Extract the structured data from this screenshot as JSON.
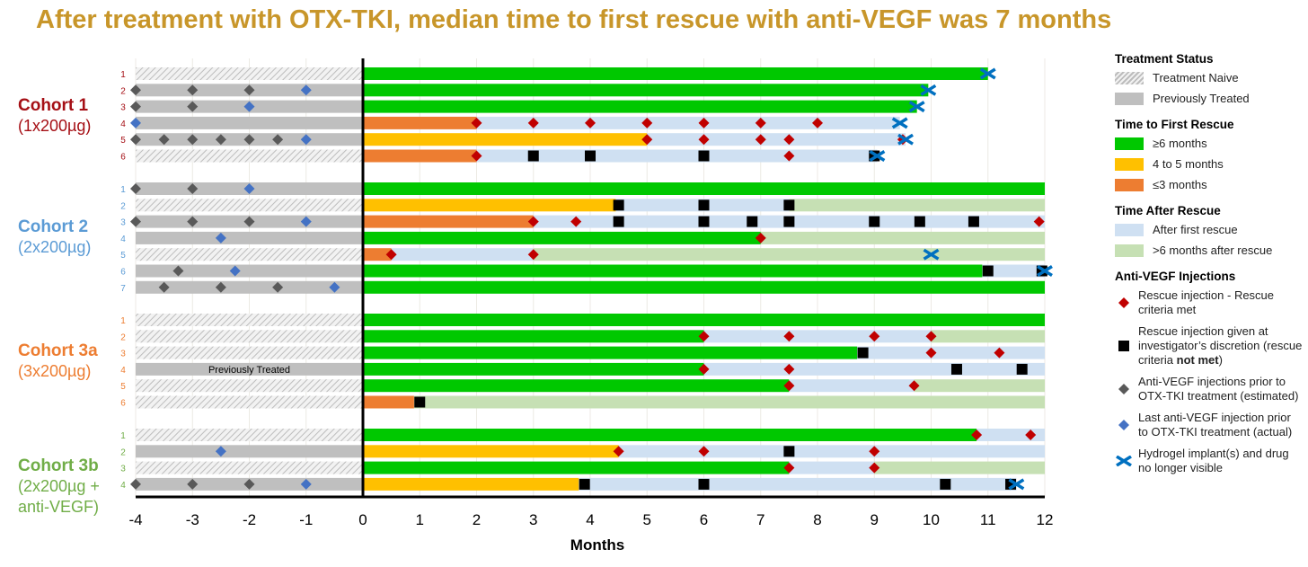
{
  "title": "After treatment with OTX-TKI, median time to first rescue with anti-VEGF was 7 months",
  "colors": {
    "title": "#C8962A",
    "green": "#00C800",
    "yellow": "#FFC000",
    "orange": "#ED7D31",
    "after": "#CFE0F2",
    "after6": "#C6E0B4",
    "prev": "#BFBFBF",
    "rescue": "#C00000",
    "discretion": "#000000",
    "prior": "#595959",
    "last": "#4472C4",
    "hydrogel": "#0070C0"
  },
  "chart_data": {
    "type": "swimmer",
    "title": "After treatment with OTX-TKI, median time to first rescue with anti-VEGF was 7 months",
    "xlabel": "Months",
    "xlim": [
      -4,
      12
    ],
    "xticks": [
      "-4",
      "-3",
      "-2",
      "-1",
      "0",
      "1",
      "2",
      "3",
      "4",
      "5",
      "6",
      "7",
      "8",
      "9",
      "10",
      "11",
      "12"
    ],
    "cohorts": [
      {
        "name": "Cohort 1",
        "dose": "(1x200µg)",
        "color": "#A50F15",
        "rows": [
          {
            "n": "1",
            "pre": "naive",
            "segs": [
              [
                "green",
                0,
                11
              ]
            ],
            "marks": [
              [
                "x",
                11
              ]
            ]
          },
          {
            "n": "2",
            "pre": "prev",
            "segs": [
              [
                "green",
                0,
                9.95
              ]
            ],
            "marks": [
              [
                "prior",
                -4
              ],
              [
                "prior",
                -3
              ],
              [
                "prior",
                -2
              ],
              [
                "last",
                -1
              ],
              [
                "x",
                9.95
              ]
            ]
          },
          {
            "n": "3",
            "pre": "prev",
            "segs": [
              [
                "green",
                0,
                9.75
              ]
            ],
            "marks": [
              [
                "prior",
                -4
              ],
              [
                "prior",
                -3
              ],
              [
                "last",
                -2
              ],
              [
                "x",
                9.75
              ]
            ]
          },
          {
            "n": "4",
            "pre": "prev",
            "segs": [
              [
                "orange",
                0,
                2
              ],
              [
                "after",
                2,
                9.45
              ]
            ],
            "marks": [
              [
                "last",
                -4
              ],
              [
                "rescue",
                2
              ],
              [
                "rescue",
                3
              ],
              [
                "rescue",
                4
              ],
              [
                "rescue",
                5
              ],
              [
                "rescue",
                6
              ],
              [
                "rescue",
                7
              ],
              [
                "rescue",
                8
              ],
              [
                "x",
                9.45
              ]
            ]
          },
          {
            "n": "5",
            "pre": "prev",
            "segs": [
              [
                "yellow",
                0,
                5
              ],
              [
                "after",
                5,
                9.55
              ]
            ],
            "marks": [
              [
                "prior",
                -4
              ],
              [
                "prior",
                -3.5
              ],
              [
                "prior",
                -3
              ],
              [
                "prior",
                -2.5
              ],
              [
                "prior",
                -2
              ],
              [
                "prior",
                -1.5
              ],
              [
                "last",
                -1
              ],
              [
                "rescue",
                5
              ],
              [
                "rescue",
                6
              ],
              [
                "rescue",
                7
              ],
              [
                "rescue",
                7.5
              ],
              [
                "rescue",
                9.5
              ],
              [
                "x",
                9.55
              ]
            ]
          },
          {
            "n": "6",
            "pre": "naive",
            "segs": [
              [
                "orange",
                0,
                2
              ],
              [
                "after",
                2,
                9.05
              ]
            ],
            "marks": [
              [
                "rescue",
                2
              ],
              [
                "discretion",
                3
              ],
              [
                "discretion",
                4
              ],
              [
                "discretion",
                6
              ],
              [
                "rescue",
                7.5
              ],
              [
                "discretion",
                9
              ],
              [
                "x",
                9.05
              ]
            ]
          }
        ]
      },
      {
        "name": "Cohort 2",
        "dose": "(2x200µg)",
        "color": "#5B9BD5",
        "rows": [
          {
            "n": "1",
            "pre": "prev",
            "segs": [
              [
                "green",
                0,
                12
              ]
            ],
            "marks": [
              [
                "prior",
                -4
              ],
              [
                "prior",
                -3
              ],
              [
                "last",
                -2
              ]
            ]
          },
          {
            "n": "2",
            "pre": "naive",
            "segs": [
              [
                "yellow",
                0,
                4.45
              ],
              [
                "after",
                4.45,
                7.5
              ],
              [
                "after6",
                7.5,
                12
              ]
            ],
            "marks": [
              [
                "discretion",
                4.5
              ],
              [
                "discretion",
                6
              ],
              [
                "discretion",
                7.5
              ]
            ]
          },
          {
            "n": "3",
            "pre": "prev",
            "segs": [
              [
                "orange",
                0,
                3
              ],
              [
                "after",
                3,
                12
              ]
            ],
            "marks": [
              [
                "prior",
                -4
              ],
              [
                "prior",
                -3
              ],
              [
                "prior",
                -2
              ],
              [
                "last",
                -1
              ],
              [
                "rescue",
                3
              ],
              [
                "rescue",
                3.75
              ],
              [
                "discretion",
                4.5
              ],
              [
                "discretion",
                6
              ],
              [
                "discretion",
                6.85
              ],
              [
                "discretion",
                7.5
              ],
              [
                "discretion",
                9
              ],
              [
                "discretion",
                9.8
              ],
              [
                "discretion",
                10.75
              ],
              [
                "rescue",
                11.9
              ]
            ]
          },
          {
            "n": "4",
            "pre": "prev",
            "segs": [
              [
                "green",
                0,
                7
              ],
              [
                "after6",
                7,
                12
              ]
            ],
            "marks": [
              [
                "last",
                -2.5
              ],
              [
                "rescue",
                7
              ]
            ]
          },
          {
            "n": "5",
            "pre": "naive",
            "segs": [
              [
                "orange",
                0,
                0.5
              ],
              [
                "after",
                0.5,
                3
              ],
              [
                "after6",
                3,
                12
              ]
            ],
            "marks": [
              [
                "rescue",
                0.5
              ],
              [
                "rescue",
                3
              ],
              [
                "x",
                10
              ]
            ]
          },
          {
            "n": "6",
            "pre": "prev",
            "segs": [
              [
                "green",
                0,
                10.9
              ],
              [
                "after",
                10.9,
                12
              ]
            ],
            "marks": [
              [
                "prior",
                -3.25
              ],
              [
                "last",
                -2.25
              ],
              [
                "discretion",
                11
              ],
              [
                "discretion",
                11.95
              ],
              [
                "x",
                12
              ]
            ]
          },
          {
            "n": "7",
            "pre": "prev",
            "segs": [
              [
                "green",
                0,
                12
              ]
            ],
            "marks": [
              [
                "prior",
                -3.5
              ],
              [
                "prior",
                -2.5
              ],
              [
                "prior",
                -1.5
              ],
              [
                "last",
                -0.5
              ]
            ]
          }
        ]
      },
      {
        "name": "Cohort 3a",
        "dose": "(3x200µg)",
        "color": "#ED7D31",
        "rows": [
          {
            "n": "1",
            "pre": "naive",
            "segs": [
              [
                "green",
                0,
                12
              ]
            ],
            "marks": []
          },
          {
            "n": "2",
            "pre": "naive",
            "segs": [
              [
                "green",
                0,
                6
              ],
              [
                "after",
                6,
                10
              ],
              [
                "after6",
                10,
                12
              ]
            ],
            "marks": [
              [
                "rescue",
                6
              ],
              [
                "rescue",
                7.5
              ],
              [
                "rescue",
                9
              ],
              [
                "rescue",
                10
              ]
            ]
          },
          {
            "n": "3",
            "pre": "naive",
            "segs": [
              [
                "green",
                0,
                8.7
              ],
              [
                "after",
                8.7,
                12
              ]
            ],
            "marks": [
              [
                "discretion",
                8.8
              ],
              [
                "rescue",
                10
              ],
              [
                "rescue",
                11.2
              ]
            ]
          },
          {
            "n": "4",
            "pre": "prev",
            "pre_label": "Previously Treated",
            "segs": [
              [
                "green",
                0,
                6
              ],
              [
                "after",
                6,
                12
              ]
            ],
            "marks": [
              [
                "rescue",
                6
              ],
              [
                "rescue",
                7.5
              ],
              [
                "discretion",
                10.45
              ],
              [
                "discretion",
                11.6
              ]
            ]
          },
          {
            "n": "5",
            "pre": "naive",
            "segs": [
              [
                "green",
                0,
                7.5
              ],
              [
                "after",
                7.5,
                9.7
              ],
              [
                "after6",
                9.7,
                12
              ]
            ],
            "marks": [
              [
                "rescue",
                7.5
              ],
              [
                "rescue",
                9.7
              ]
            ]
          },
          {
            "n": "6",
            "pre": "naive",
            "segs": [
              [
                "orange",
                0,
                0.9
              ],
              [
                "after6",
                0.9,
                12
              ]
            ],
            "marks": [
              [
                "discretion",
                1
              ]
            ]
          }
        ]
      },
      {
        "name": "Cohort 3b",
        "dose": "(2x200µg + anti-VEGF)",
        "dose1": "(2x200µg +",
        "dose2": "anti-VEGF)",
        "color": "#70AD47",
        "rows": [
          {
            "n": "1",
            "pre": "naive",
            "segs": [
              [
                "green",
                0,
                10.8
              ],
              [
                "after",
                10.8,
                12
              ]
            ],
            "marks": [
              [
                "rescue",
                10.8
              ],
              [
                "rescue",
                11.75
              ]
            ]
          },
          {
            "n": "2",
            "pre": "prev",
            "segs": [
              [
                "yellow",
                0,
                4.5
              ],
              [
                "after",
                4.5,
                12
              ]
            ],
            "marks": [
              [
                "last",
                -2.5
              ],
              [
                "rescue",
                4.5
              ],
              [
                "rescue",
                6
              ],
              [
                "discretion",
                7.5
              ],
              [
                "rescue",
                9
              ]
            ]
          },
          {
            "n": "3",
            "pre": "naive",
            "segs": [
              [
                "green",
                0,
                7.5
              ],
              [
                "after",
                7.5,
                9
              ],
              [
                "after6",
                9,
                12
              ]
            ],
            "marks": [
              [
                "rescue",
                7.5
              ],
              [
                "rescue",
                9
              ]
            ]
          },
          {
            "n": "4",
            "pre": "prev",
            "segs": [
              [
                "yellow",
                0,
                3.8
              ],
              [
                "after",
                3.8,
                11.5
              ]
            ],
            "marks": [
              [
                "prior",
                -4
              ],
              [
                "prior",
                -3
              ],
              [
                "prior",
                -2
              ],
              [
                "last",
                -1
              ],
              [
                "discretion",
                3.9
              ],
              [
                "discretion",
                6
              ],
              [
                "discretion",
                10.25
              ],
              [
                "discretion",
                11.4
              ],
              [
                "x",
                11.5
              ]
            ]
          }
        ]
      }
    ]
  },
  "legend": {
    "status_title": "Treatment Status",
    "naive": "Treatment Naive",
    "prev": "Previously Treated",
    "first_title": "Time to First Rescue",
    "ge6": "≥6 months",
    "m45": "4 to 5 months",
    "le3": "≤3 months",
    "after_title": "Time After Rescue",
    "after": "After first rescue",
    "after6": ">6 months after rescue",
    "inj_title": "Anti-VEGF Injections",
    "rescue": "Rescue injection - Rescue criteria met",
    "discretion_a": "Rescue injection given at investigator’s discretion (rescue criteria ",
    "discretion_b": "not met",
    "discretion_c": ")",
    "prior": "Anti-VEGF injections prior to OTX-TKI treatment (estimated)",
    "last": "Last anti-VEGF injection prior to OTX-TKI treatment (actual)",
    "hydrogel": "Hydrogel implant(s) and drug no longer visible"
  }
}
